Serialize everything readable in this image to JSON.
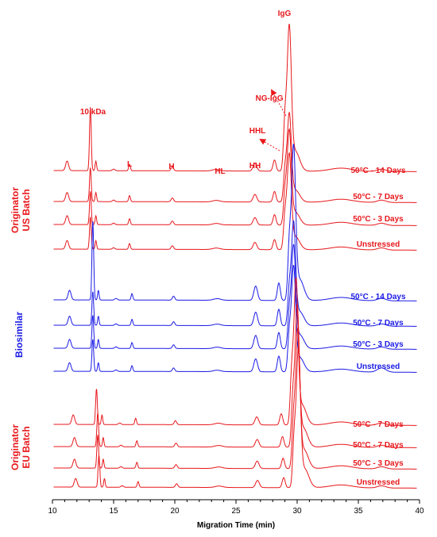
{
  "chart_data": {
    "type": "line",
    "xlabel": "Migration Time (min)",
    "ylabel": "",
    "xlim": [
      10,
      40
    ],
    "x_ticks": [
      "10",
      "15",
      "20",
      "25",
      "30",
      "35",
      "40"
    ],
    "grid": false,
    "colors": {
      "originator": "#e8171b",
      "biosimilar": "#1a1ae6",
      "axis": "#000000"
    },
    "peak_labels": [
      {
        "text": "10 kDa",
        "x": 13.4,
        "color": "#e8171b"
      },
      {
        "text": "L",
        "x": 16.3,
        "color": "#e8171b"
      },
      {
        "text": "H",
        "x": 19.8,
        "color": "#e8171b"
      },
      {
        "text": "HL",
        "x": 23.3,
        "color": "#e8171b"
      },
      {
        "text": "HH",
        "x": 26.3,
        "color": "#e8171b"
      },
      {
        "text": "HHL",
        "x": 27.4,
        "color": "#e8171b"
      },
      {
        "text": "NG-IgG",
        "x": 28.5,
        "color": "#e8171b"
      },
      {
        "text": "IgG",
        "x": 29.0,
        "color": "#e8171b"
      }
    ],
    "groups": [
      {
        "name": "Originator US Batch",
        "lines": [
          "Originator",
          "US Batch"
        ],
        "color": "#e8171b"
      },
      {
        "name": "Biosimilar",
        "lines": [
          "Biosimilar"
        ],
        "color": "#1a1ae6"
      },
      {
        "name": "Originator EU Batch",
        "lines": [
          "Originator",
          "EU Batch"
        ],
        "color": "#e8171b"
      }
    ],
    "series": [
      {
        "name": "50°C - 14 Days",
        "group": 0,
        "color": "#e8171b",
        "peaks": {
          "s10": 13.1,
          "igg": 29.35
        },
        "scale": 1.0
      },
      {
        "name": "50°C - 7 Days",
        "group": 0,
        "color": "#e8171b",
        "peaks": {
          "s10": 13.1,
          "igg": 29.35
        },
        "scale": 0.95
      },
      {
        "name": "50°C - 3 Days",
        "group": 0,
        "color": "#e8171b",
        "peaks": {
          "s10": 13.1,
          "igg": 29.35
        },
        "scale": 0.93
      },
      {
        "name": "Unstressed",
        "group": 0,
        "color": "#e8171b",
        "peaks": {
          "s10": 13.1,
          "igg": 29.35
        },
        "scale": 0.9
      },
      {
        "name": "50°C - 14 Days",
        "group": 1,
        "color": "#1a1ae6",
        "peaks": {
          "s10": 13.3,
          "igg": 29.7
        },
        "scale": 1.0
      },
      {
        "name": "50°C - 7 Days",
        "group": 1,
        "color": "#1a1ae6",
        "peaks": {
          "s10": 13.3,
          "igg": 29.7
        },
        "scale": 0.95
      },
      {
        "name": "50°C - 3 Days",
        "group": 1,
        "color": "#1a1ae6",
        "peaks": {
          "s10": 13.3,
          "igg": 29.7
        },
        "scale": 0.93
      },
      {
        "name": "Unstressed",
        "group": 1,
        "color": "#1a1ae6",
        "peaks": {
          "s10": 13.3,
          "igg": 29.7
        },
        "scale": 0.9
      },
      {
        "name": "50°C - 7 Days",
        "group": 2,
        "color": "#e8171b",
        "peaks": {
          "s10": 13.6,
          "igg": 29.9
        },
        "scale": 1.0
      },
      {
        "name": "50°C - 7 Days",
        "group": 2,
        "color": "#e8171b",
        "peaks": {
          "s10": 13.7,
          "igg": 30.0
        },
        "scale": 0.95
      },
      {
        "name": "50°C - 3 Days",
        "group": 2,
        "color": "#e8171b",
        "peaks": {
          "s10": 13.7,
          "igg": 30.05
        },
        "scale": 0.93
      },
      {
        "name": "Unstressed",
        "group": 2,
        "color": "#e8171b",
        "peaks": {
          "s10": 13.8,
          "igg": 30.1
        },
        "scale": 0.9
      }
    ]
  }
}
